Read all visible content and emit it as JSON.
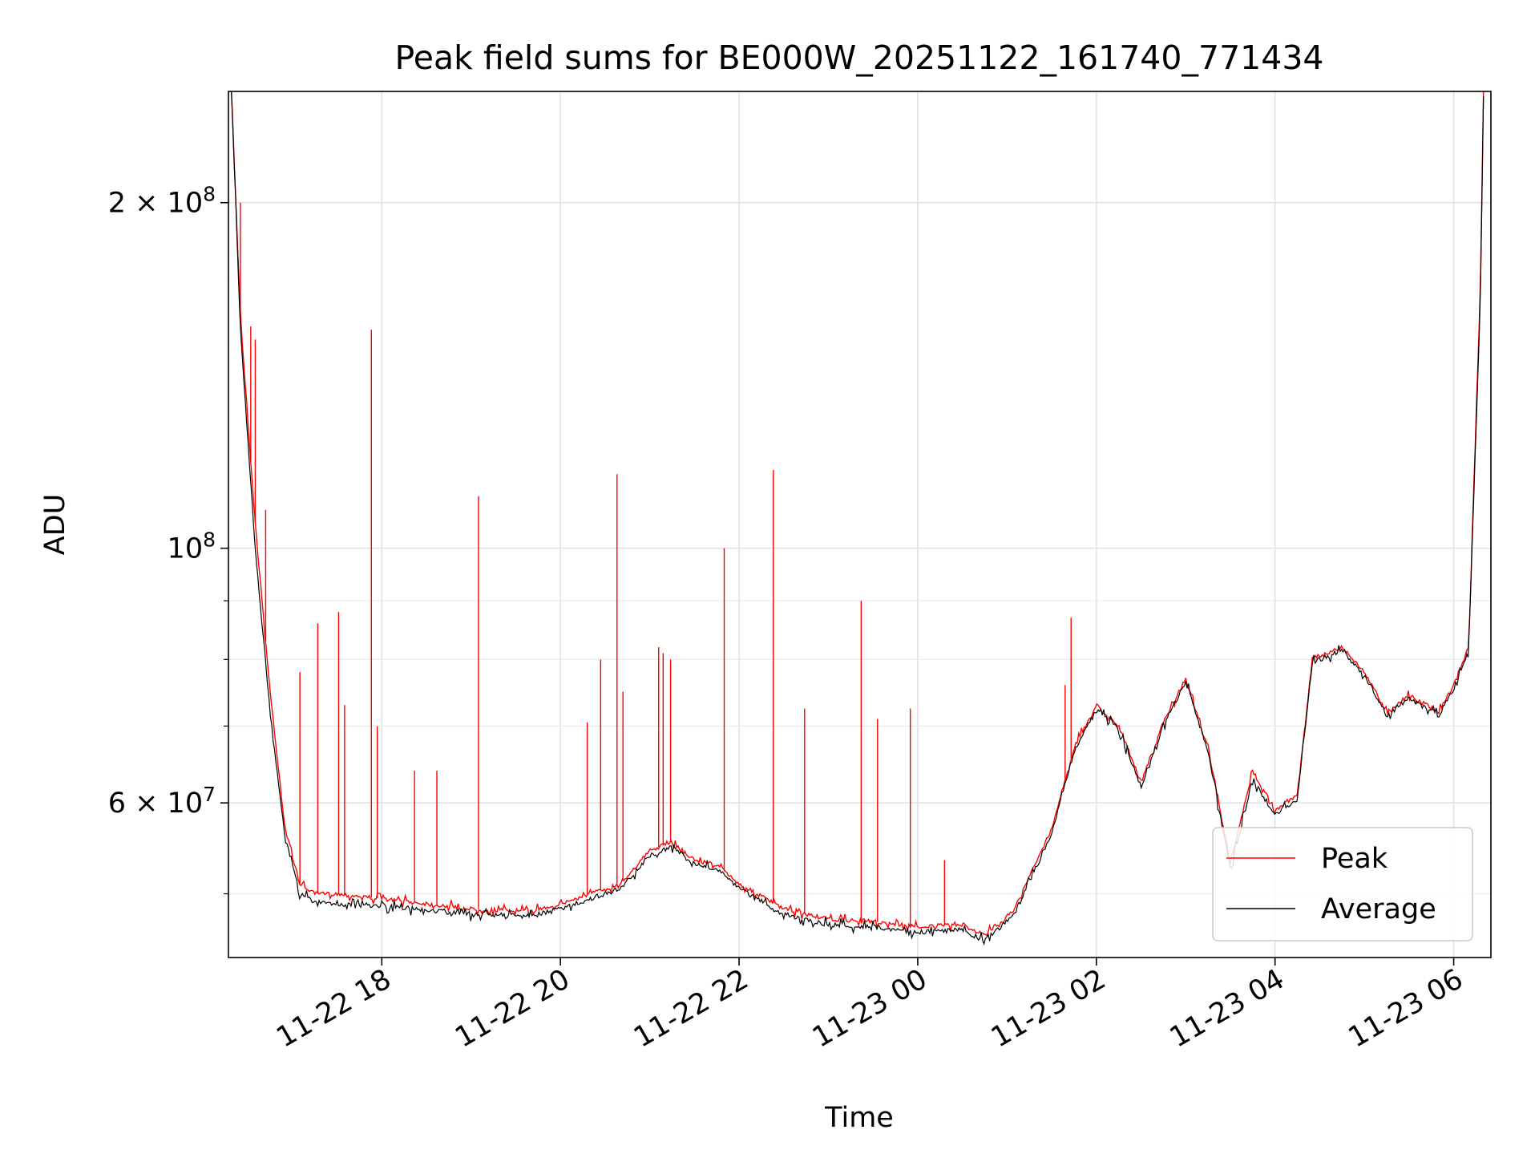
{
  "chart_data": {
    "type": "line",
    "title": "Peak field sums for BE000W_20251122_161740_771434",
    "xlabel": "Time",
    "ylabel": "ADU",
    "yscale": "log",
    "grid": true,
    "legend_position": "lower-right",
    "x_range": [
      "2025-11-22 16:17",
      "2025-11-23 06:25"
    ],
    "ylim": [
      44000000,
      250000000
    ],
    "x_ticks": [
      {
        "label": "11-22 18",
        "t": "2025-11-22 18:00"
      },
      {
        "label": "11-22 20",
        "t": "2025-11-22 20:00"
      },
      {
        "label": "11-22 22",
        "t": "2025-11-22 22:00"
      },
      {
        "label": "11-23 00",
        "t": "2025-11-23 00:00"
      },
      {
        "label": "11-23 02",
        "t": "2025-11-23 02:00"
      },
      {
        "label": "11-23 04",
        "t": "2025-11-23 04:00"
      },
      {
        "label": "11-23 06",
        "t": "2025-11-23 06:00"
      }
    ],
    "y_major_ticks": [
      {
        "label_base": "2 × 10",
        "label_exp": "8",
        "value": 200000000
      },
      {
        "label_base": "10",
        "label_exp": "8",
        "value": 100000000
      },
      {
        "label_base": "6 × 10",
        "label_exp": "7",
        "value": 60000000
      }
    ],
    "y_minor_ticks": [
      50000000,
      70000000,
      80000000,
      90000000,
      300000000
    ],
    "series": [
      {
        "name": "Peak",
        "color": "#ff0000",
        "x": [
          "2025-11-22 16:19",
          "2025-11-22 16:25",
          "2025-11-22 16:35",
          "2025-11-22 16:45",
          "2025-11-22 16:55",
          "2025-11-22 17:05",
          "2025-11-22 17:15",
          "2025-11-22 17:30",
          "2025-11-22 18:00",
          "2025-11-22 19:00",
          "2025-11-22 19:40",
          "2025-11-22 20:00",
          "2025-11-22 20:40",
          "2025-11-22 21:00",
          "2025-11-22 21:15",
          "2025-11-22 21:30",
          "2025-11-22 21:45",
          "2025-11-22 22:00",
          "2025-11-22 22:30",
          "2025-11-22 23:00",
          "2025-11-22 23:30",
          "2025-11-23 00:00",
          "2025-11-23 00:30",
          "2025-11-23 00:45",
          "2025-11-23 01:05",
          "2025-11-23 01:30",
          "2025-11-23 01:45",
          "2025-11-23 02:00",
          "2025-11-23 02:15",
          "2025-11-23 02:30",
          "2025-11-23 02:45",
          "2025-11-23 03:00",
          "2025-11-23 03:15",
          "2025-11-23 03:30",
          "2025-11-23 03:45",
          "2025-11-23 04:00",
          "2025-11-23 04:15",
          "2025-11-23 04:25",
          "2025-11-23 04:45",
          "2025-11-23 05:00",
          "2025-11-23 05:15",
          "2025-11-23 05:30",
          "2025-11-23 05:50",
          "2025-11-23 06:00",
          "2025-11-23 06:10",
          "2025-11-23 06:18",
          "2025-11-23 06:20"
        ],
        "y": [
          250000000,
          160000000,
          105000000,
          75000000,
          57000000,
          51000000,
          50000000,
          50000000,
          49500000,
          48500000,
          48300000,
          49000000,
          51000000,
          54500000,
          55500000,
          53500000,
          53000000,
          51000000,
          48500000,
          47500000,
          47300000,
          46800000,
          47000000,
          46000000,
          48500000,
          57000000,
          67000000,
          73000000,
          70000000,
          62500000,
          70500000,
          77000000,
          67000000,
          53000000,
          64000000,
          59000000,
          61000000,
          80000000,
          82000000,
          78000000,
          72000000,
          74500000,
          72000000,
          76000000,
          82000000,
          170000000,
          250000000
        ],
        "spikes": [
          {
            "t": "2025-11-22 16:25",
            "value": 200000000
          },
          {
            "t": "2025-11-22 16:32",
            "value": 156000000
          },
          {
            "t": "2025-11-22 16:35",
            "value": 152000000
          },
          {
            "t": "2025-11-22 16:42",
            "value": 108000000
          },
          {
            "t": "2025-11-22 17:05",
            "value": 78000000
          },
          {
            "t": "2025-11-22 17:17",
            "value": 86000000
          },
          {
            "t": "2025-11-22 17:31",
            "value": 88000000
          },
          {
            "t": "2025-11-22 17:35",
            "value": 73000000
          },
          {
            "t": "2025-11-22 17:53",
            "value": 155000000
          },
          {
            "t": "2025-11-22 17:57",
            "value": 70000000
          },
          {
            "t": "2025-11-22 18:22",
            "value": 64000000
          },
          {
            "t": "2025-11-22 18:37",
            "value": 64000000
          },
          {
            "t": "2025-11-22 19:05",
            "value": 111000000
          },
          {
            "t": "2025-11-22 20:18",
            "value": 70500000
          },
          {
            "t": "2025-11-22 20:27",
            "value": 80000000
          },
          {
            "t": "2025-11-22 20:38",
            "value": 116000000
          },
          {
            "t": "2025-11-22 20:42",
            "value": 75000000
          },
          {
            "t": "2025-11-22 21:06",
            "value": 82000000
          },
          {
            "t": "2025-11-22 21:09",
            "value": 81000000
          },
          {
            "t": "2025-11-22 21:14",
            "value": 80000000
          },
          {
            "t": "2025-11-22 21:50",
            "value": 100000000
          },
          {
            "t": "2025-11-22 22:23",
            "value": 117000000
          },
          {
            "t": "2025-11-22 22:44",
            "value": 72500000
          },
          {
            "t": "2025-11-22 23:22",
            "value": 90000000
          },
          {
            "t": "2025-11-22 23:33",
            "value": 71000000
          },
          {
            "t": "2025-11-22 23:55",
            "value": 72500000
          },
          {
            "t": "2025-11-23 00:18",
            "value": 53500000
          },
          {
            "t": "2025-11-23 01:39",
            "value": 76000000
          },
          {
            "t": "2025-11-23 01:43",
            "value": 87000000
          }
        ]
      },
      {
        "name": "Average",
        "color": "#000000",
        "x": [
          "2025-11-22 16:19",
          "2025-11-22 16:25",
          "2025-11-22 16:35",
          "2025-11-22 16:45",
          "2025-11-22 16:55",
          "2025-11-22 17:05",
          "2025-11-22 17:15",
          "2025-11-22 17:30",
          "2025-11-22 18:00",
          "2025-11-22 19:00",
          "2025-11-22 19:40",
          "2025-11-22 20:00",
          "2025-11-22 20:40",
          "2025-11-22 21:00",
          "2025-11-22 21:15",
          "2025-11-22 21:30",
          "2025-11-22 21:45",
          "2025-11-22 22:00",
          "2025-11-22 22:30",
          "2025-11-22 23:00",
          "2025-11-22 23:30",
          "2025-11-23 00:00",
          "2025-11-23 00:30",
          "2025-11-23 00:45",
          "2025-11-23 01:05",
          "2025-11-23 01:30",
          "2025-11-23 01:45",
          "2025-11-23 02:00",
          "2025-11-23 02:15",
          "2025-11-23 02:30",
          "2025-11-23 02:45",
          "2025-11-23 03:00",
          "2025-11-23 03:15",
          "2025-11-23 03:30",
          "2025-11-23 03:45",
          "2025-11-23 04:00",
          "2025-11-23 04:15",
          "2025-11-23 04:25",
          "2025-11-23 04:45",
          "2025-11-23 05:00",
          "2025-11-23 05:15",
          "2025-11-23 05:30",
          "2025-11-23 05:50",
          "2025-11-23 06:00",
          "2025-11-23 06:10",
          "2025-11-23 06:18",
          "2025-11-23 06:20"
        ],
        "y": [
          250000000,
          155000000,
          100000000,
          72000000,
          56000000,
          50000000,
          49200000,
          49000000,
          48800000,
          48000000,
          47800000,
          48500000,
          50500000,
          54000000,
          55000000,
          53000000,
          52500000,
          50500000,
          48000000,
          47000000,
          46800000,
          46300000,
          46500000,
          45500000,
          48000000,
          56500000,
          66500000,
          72500000,
          69500000,
          62000000,
          70000000,
          76500000,
          66500000,
          52500000,
          63000000,
          58500000,
          60500000,
          79500000,
          81500000,
          77500000,
          71500000,
          74000000,
          71500000,
          75500000,
          81500000,
          165000000,
          250000000
        ]
      }
    ]
  }
}
